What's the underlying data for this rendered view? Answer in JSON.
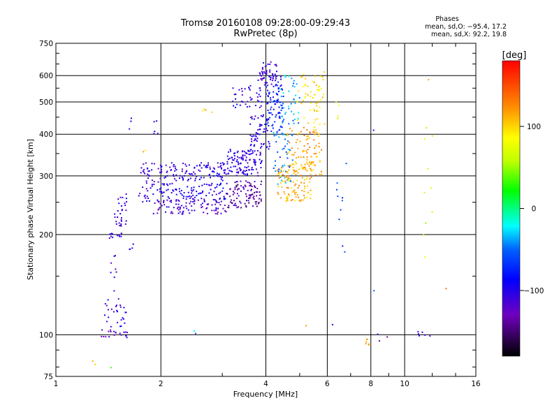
{
  "header": {
    "title": "Tromsø 20160108 09:28:00-09:29:43",
    "subtitle": "RwPretec (8p)"
  },
  "stats": {
    "title": "Phases",
    "o_line": "mean, sd,O: −95.4, 17.2",
    "x_line": "mean, sd,X:  92.2, 19.8"
  },
  "colors": {
    "frame": "#000000",
    "grid": "#000000",
    "background": "#ffffff"
  },
  "chart_data": {
    "type": "scatter",
    "xlabel": "Frequency [MHz]",
    "ylabel": "Stationary phase Virtual Height [km]",
    "xscale": "log",
    "yscale": "log",
    "xlim": [
      1,
      16
    ],
    "ylim": [
      75,
      750
    ],
    "grid": true,
    "xticks": [
      1,
      2,
      4,
      6,
      8,
      10,
      16
    ],
    "yticks": [
      75,
      100,
      200,
      300,
      400,
      500,
      600,
      750
    ],
    "colorbar": {
      "label": "[deg]",
      "range": [
        -180,
        180
      ],
      "ticks": [
        100,
        0,
        -100
      ]
    },
    "point_groups": [
      {
        "x": [
          1.42,
          1.55
        ],
        "y": [
          195,
          202
        ],
        "phase": -105,
        "n": 12
      },
      {
        "x": [
          1.46,
          1.6
        ],
        "y": [
          210,
          240
        ],
        "phase": -110,
        "n": 18
      },
      {
        "x": [
          1.5,
          1.62
        ],
        "y": [
          235,
          265
        ],
        "phase": -105,
        "n": 12
      },
      {
        "x": [
          1.35,
          1.62
        ],
        "y": [
          98,
          104
        ],
        "phase": -120,
        "n": 20
      },
      {
        "x": [
          1.38,
          1.6
        ],
        "y": [
          105,
          125
        ],
        "phase": -105,
        "n": 25
      },
      {
        "x": [
          1.4,
          1.58
        ],
        "y": [
          125,
          185
        ],
        "phase": -100,
        "n": 10
      },
      {
        "x": [
          1.62,
          1.68
        ],
        "y": [
          180,
          190
        ],
        "phase": -100,
        "n": 4
      },
      {
        "x": [
          1.6,
          1.66
        ],
        "y": [
          400,
          450
        ],
        "phase": -110,
        "n": 3
      },
      {
        "x": [
          1.78,
          1.85
        ],
        "y": [
          340,
          360
        ],
        "phase": 110,
        "n": 2
      },
      {
        "x": [
          1.75,
          2.0
        ],
        "y": [
          280,
          330
        ],
        "phase": -110,
        "n": 30
      },
      {
        "x": [
          1.7,
          2.0
        ],
        "y": [
          250,
          280
        ],
        "phase": -105,
        "n": 20
      },
      {
        "x": [
          1.9,
          2.05
        ],
        "y": [
          400,
          440
        ],
        "phase": -110,
        "n": 5
      },
      {
        "x": [
          2.0,
          3.1
        ],
        "y": [
          290,
          330
        ],
        "phase": -105,
        "n": 110
      },
      {
        "x": [
          2.0,
          3.1
        ],
        "y": [
          255,
          285
        ],
        "phase": -100,
        "n": 90
      },
      {
        "x": [
          1.9,
          3.1
        ],
        "y": [
          230,
          255
        ],
        "phase": -115,
        "n": 100
      },
      {
        "x": [
          3.1,
          3.9
        ],
        "y": [
          300,
          360
        ],
        "phase": -105,
        "n": 120
      },
      {
        "x": [
          3.1,
          3.9
        ],
        "y": [
          240,
          290
        ],
        "phase": -135,
        "n": 100
      },
      {
        "x": [
          3.6,
          4.1
        ],
        "y": [
          360,
          460
        ],
        "phase": -105,
        "n": 60
      },
      {
        "x": [
          3.2,
          3.9
        ],
        "y": [
          480,
          560
        ],
        "phase": -105,
        "n": 40
      },
      {
        "x": [
          3.8,
          4.3
        ],
        "y": [
          560,
          660
        ],
        "phase": -110,
        "n": 50
      },
      {
        "x": [
          4.0,
          4.5
        ],
        "y": [
          400,
          600
        ],
        "phase": -80,
        "n": 90
      },
      {
        "x": [
          4.2,
          4.8
        ],
        "y": [
          280,
          420
        ],
        "phase": -50,
        "n": 50
      },
      {
        "x": [
          4.3,
          5.4
        ],
        "y": [
          250,
          320
        ],
        "phase": 110,
        "n": 110
      },
      {
        "x": [
          4.6,
          5.8
        ],
        "y": [
          300,
          420
        ],
        "phase": 115,
        "n": 100
      },
      {
        "x": [
          4.9,
          5.9
        ],
        "y": [
          420,
          620
        ],
        "phase": 95,
        "n": 60
      },
      {
        "x": [
          4.4,
          5.0
        ],
        "y": [
          430,
          600
        ],
        "phase": -40,
        "n": 40
      },
      {
        "x": [
          2.5,
          2.9
        ],
        "y": [
          460,
          480
        ],
        "phase": 110,
        "n": 4
      },
      {
        "x": [
          2.45,
          2.55
        ],
        "y": [
          100,
          106
        ],
        "phase": -40,
        "n": 2
      },
      {
        "x": [
          5.2,
          5.3
        ],
        "y": [
          104,
          108
        ],
        "phase": 120,
        "n": 1
      },
      {
        "x": [
          6.3,
          6.8
        ],
        "y": [
          160,
          345
        ],
        "phase": -60,
        "n": 10
      },
      {
        "x": [
          6.2,
          6.9
        ],
        "y": [
          420,
          500
        ],
        "phase": 80,
        "n": 5
      },
      {
        "x": [
          6.2,
          6.3
        ],
        "y": [
          106,
          110
        ],
        "phase": -110,
        "n": 1
      },
      {
        "x": [
          7.7,
          7.95
        ],
        "y": [
          93,
          99
        ],
        "phase": 110,
        "n": 6
      },
      {
        "x": [
          8.05,
          8.2
        ],
        "y": [
          135,
          145
        ],
        "phase": -30,
        "n": 1
      },
      {
        "x": [
          8.05,
          8.2
        ],
        "y": [
          410,
          420
        ],
        "phase": -100,
        "n": 1
      },
      {
        "x": [
          8.3,
          9.0
        ],
        "y": [
          95,
          102
        ],
        "phase": -120,
        "n": 3
      },
      {
        "x": [
          10.8,
          12.3
        ],
        "y": [
          99,
          103
        ],
        "phase": -110,
        "n": 6
      },
      {
        "x": [
          10.9,
          12.3
        ],
        "y": [
          170,
          500
        ],
        "phase": 60,
        "n": 10
      },
      {
        "x": [
          11.4,
          11.8
        ],
        "y": [
          580,
          600
        ],
        "phase": 120,
        "n": 1
      },
      {
        "x": [
          12.8,
          13.2
        ],
        "y": [
          135,
          140
        ],
        "phase": 120,
        "n": 1
      },
      {
        "x": [
          1.25,
          1.32
        ],
        "y": [
          80,
          84
        ],
        "phase": 110,
        "n": 2
      },
      {
        "x": [
          1.4,
          1.46
        ],
        "y": [
          78,
          82
        ],
        "phase": 40,
        "n": 1
      }
    ]
  }
}
